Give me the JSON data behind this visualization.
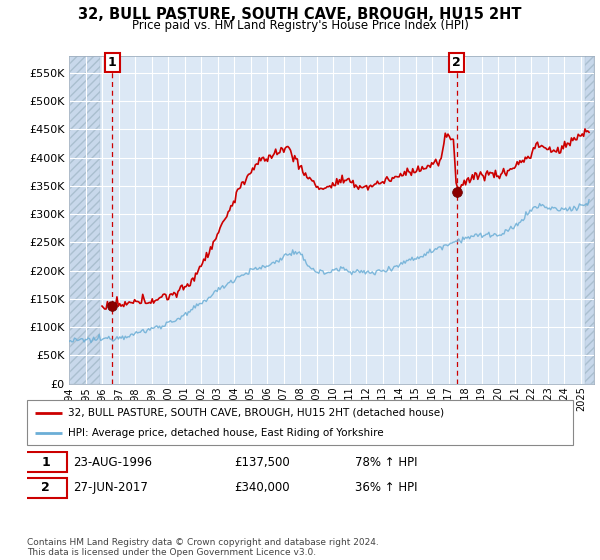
{
  "title": "32, BULL PASTURE, SOUTH CAVE, BROUGH, HU15 2HT",
  "subtitle": "Price paid vs. HM Land Registry's House Price Index (HPI)",
  "ylabel_ticks": [
    "£0",
    "£50K",
    "£100K",
    "£150K",
    "£200K",
    "£250K",
    "£300K",
    "£350K",
    "£400K",
    "£450K",
    "£500K",
    "£550K"
  ],
  "ytick_vals": [
    0,
    50000,
    100000,
    150000,
    200000,
    250000,
    300000,
    350000,
    400000,
    450000,
    500000,
    550000
  ],
  "ylim": [
    0,
    580000
  ],
  "xlim_start": 1994.0,
  "xlim_end": 2025.8,
  "xtick_years": [
    1994,
    1995,
    1996,
    1997,
    1998,
    1999,
    2000,
    2001,
    2002,
    2003,
    2004,
    2005,
    2006,
    2007,
    2008,
    2009,
    2010,
    2011,
    2012,
    2013,
    2014,
    2015,
    2016,
    2017,
    2018,
    2019,
    2020,
    2021,
    2022,
    2023,
    2024,
    2025
  ],
  "sale1_x": 1996.63,
  "sale1_y": 137500,
  "sale1_label": "1",
  "sale1_date": "23-AUG-1996",
  "sale1_price": "£137,500",
  "sale1_hpi": "78% ↑ HPI",
  "sale2_x": 2017.49,
  "sale2_y": 340000,
  "sale2_label": "2",
  "sale2_date": "27-JUN-2017",
  "sale2_price": "£340,000",
  "sale2_hpi": "36% ↑ HPI",
  "hpi_line_color": "#6baed6",
  "sale_line_color": "#cc0000",
  "vline_color": "#cc0000",
  "dot_color": "#8b0000",
  "dot_size": 7,
  "box_color": "#cc0000",
  "legend_sale_label": "32, BULL PASTURE, SOUTH CAVE, BROUGH, HU15 2HT (detached house)",
  "legend_hpi_label": "HPI: Average price, detached house, East Riding of Yorkshire",
  "footer": "Contains HM Land Registry data © Crown copyright and database right 2024.\nThis data is licensed under the Open Government Licence v3.0.",
  "plot_bg_color": "#dce8f5",
  "grid_color": "#ffffff",
  "hatch_bg_color": "#c8d8eb"
}
